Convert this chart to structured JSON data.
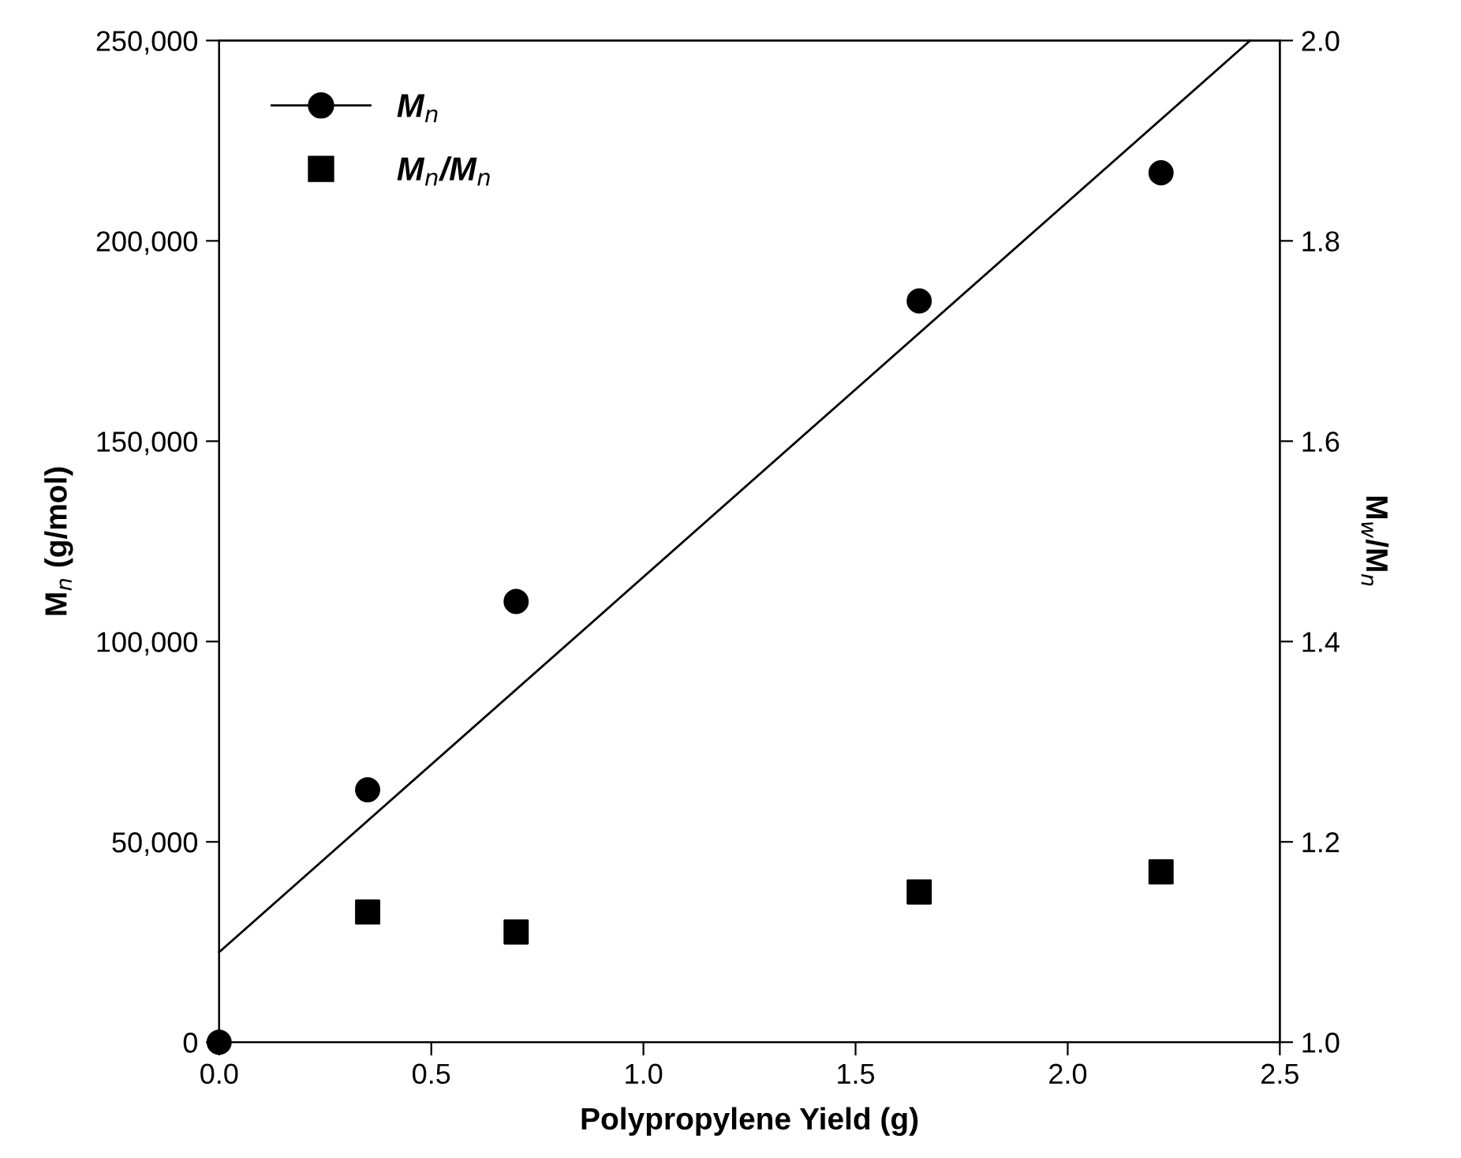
{
  "chart_data": {
    "type": "scatter",
    "xlabel": "Polypropylene Yield (g)",
    "ylabel": "M$_{n}$ (g/mol)",
    "y2label": "M$_{w}$/M$_{n}$",
    "xlim": [
      0,
      2.5
    ],
    "xticks": [
      {
        "value": 0,
        "label": "0.0"
      },
      0.5,
      {
        "value": 1,
        "label": "1.0"
      },
      1.5,
      {
        "value": 2,
        "label": "2.0"
      },
      2.5
    ],
    "ylim": [
      0,
      250000
    ],
    "yticks": [
      {
        "value": 0,
        "label": "0"
      },
      {
        "value": 50000,
        "label": "50,000"
      },
      {
        "value": 100000,
        "label": "100,000"
      },
      {
        "value": 150000,
        "label": "150,000"
      },
      {
        "value": 200000,
        "label": "200,000"
      },
      {
        "value": 250000,
        "label": "250,000"
      }
    ],
    "y2lim": [
      1.0,
      2.0
    ],
    "y2ticks": [
      {
        "value": 1,
        "label": "1.0"
      },
      1.2,
      1.4,
      1.6,
      1.8,
      {
        "value": 2,
        "label": "2.0"
      }
    ],
    "x": [
      0,
      0.35,
      0.7,
      1.65,
      2.22
    ],
    "series": [
      {
        "name": "M$_{n}$",
        "marker": "circle",
        "color": "#000000",
        "values": [
          0,
          63000,
          110000,
          185000,
          217000
        ]
      },
      {
        "name": "M$_{n}$/M$_{n}$",
        "marker": "square",
        "color": "#000000",
        "axis": "y2",
        "values": [
          null,
          1.13,
          1.11,
          1.15,
          1.17
        ]
      },
      {
        "type": "line",
        "color": "#000000",
        "x": [
          0,
          2.43
        ],
        "values": [
          22500,
          250000
        ]
      }
    ],
    "legend": "top left",
    "grid": false
  }
}
